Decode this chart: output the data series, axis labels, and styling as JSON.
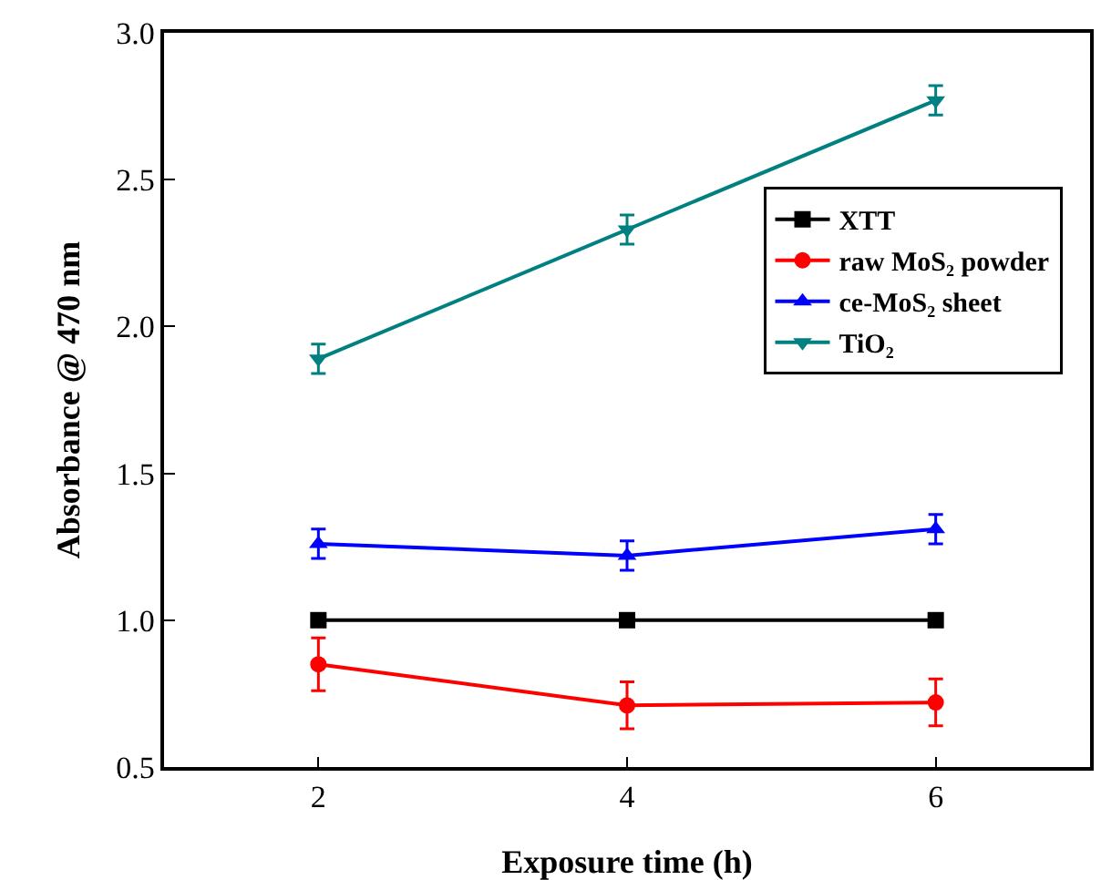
{
  "chart_data": {
    "type": "line",
    "xlabel": "Exposure time (h)",
    "ylabel": "Absorbance @ 470 nm",
    "x": [
      2,
      4,
      6
    ],
    "series": [
      {
        "name": "XTT",
        "color": "#000000",
        "marker": "square",
        "values": [
          1.0,
          1.0,
          1.0
        ]
      },
      {
        "name": "raw MoS₂ powder",
        "color": "#ff0000",
        "marker": "circle",
        "values": [
          0.85,
          0.71,
          0.72
        ],
        "errors": [
          0.09,
          0.08,
          0.08
        ]
      },
      {
        "name": "ce-MoS₂ sheet",
        "color": "#0000ff",
        "marker": "triangle",
        "values": [
          1.26,
          1.22,
          1.31
        ],
        "errors": [
          0.05,
          0.05,
          0.05
        ]
      },
      {
        "name": "TiO₂",
        "color": "#008080",
        "marker": "triangle-down",
        "values": [
          1.89,
          2.33,
          2.77
        ],
        "errors": [
          0.05,
          0.05,
          0.05
        ]
      }
    ],
    "xlim": [
      1,
      7
    ],
    "xticks": [
      2,
      4,
      6
    ],
    "ylim": [
      0.5,
      3.0
    ],
    "yticks": [
      {
        "value": 0.5,
        "label": "0.5"
      },
      {
        "value": 1.0,
        "label": "1.0"
      },
      {
        "value": 1.5,
        "label": "1.5"
      },
      {
        "value": 2.0,
        "label": "2.0"
      },
      {
        "value": 2.5,
        "label": "2.5"
      },
      {
        "value": 3.0,
        "label": "3.0"
      }
    ],
    "grid": false,
    "legend": "top right",
    "line_style": "solid"
  }
}
